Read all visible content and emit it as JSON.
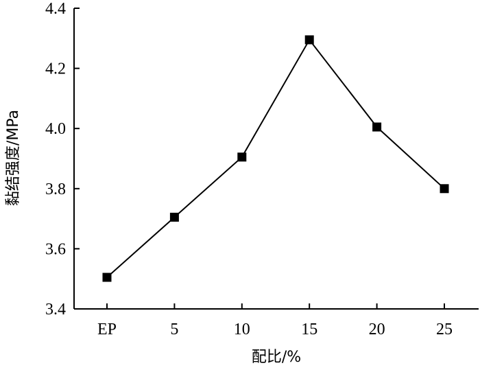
{
  "chart_data": {
    "type": "line",
    "title": "",
    "xlabel": "配比/%",
    "ylabel": "黏结强度/MPa",
    "categories": [
      "EP",
      "5",
      "10",
      "15",
      "20",
      "25"
    ],
    "series": [
      {
        "values": [
          3.505,
          3.705,
          3.905,
          4.295,
          4.005,
          3.8
        ]
      }
    ],
    "ylim": [
      3.4,
      4.4
    ],
    "yticks": [
      "3.4",
      "3.6",
      "3.8",
      "4.0",
      "4.2",
      "4.4"
    ],
    "grid": false,
    "marker": "square",
    "colors": {
      "line": "#000000",
      "marker": "#000000"
    }
  }
}
